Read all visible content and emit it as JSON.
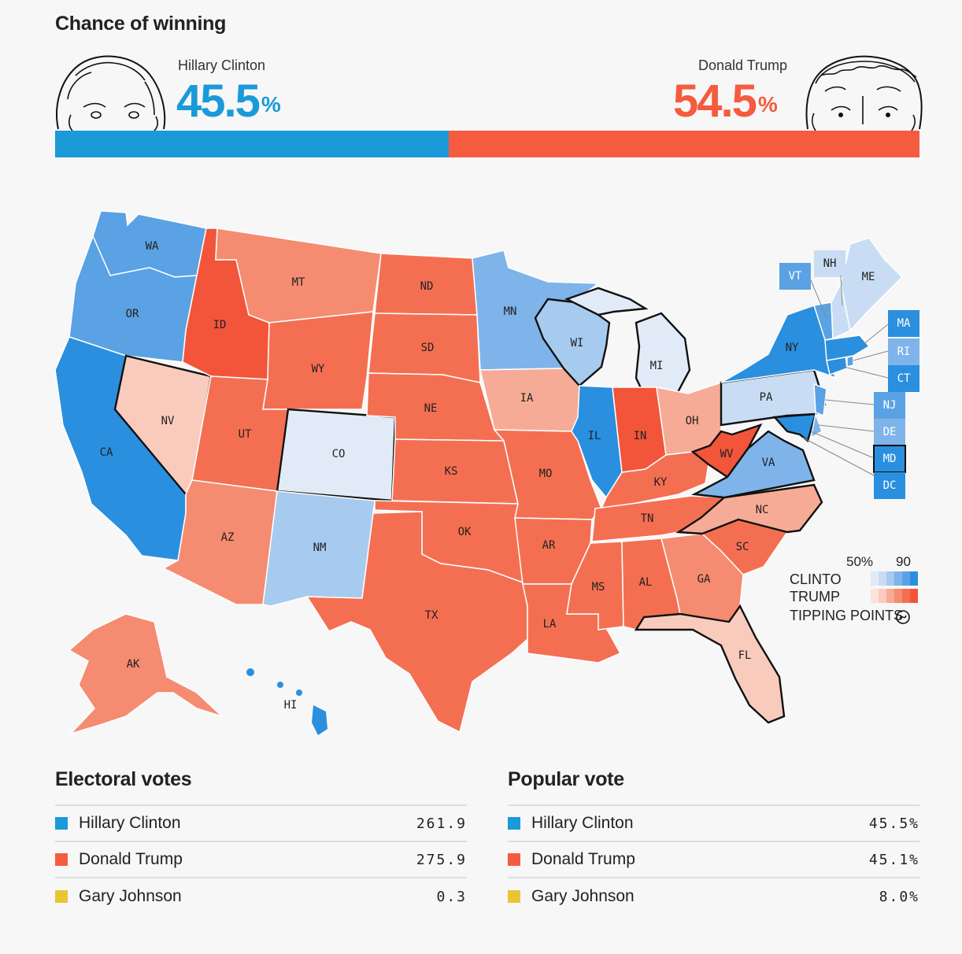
{
  "header": {
    "title": "Chance of winning"
  },
  "candidates": {
    "clinton": {
      "name": "Hillary Clinton",
      "pct": "45.5",
      "pct_sign": "%",
      "color": "#1a9ad9",
      "portrait": "clinton-portrait-icon"
    },
    "trump": {
      "name": "Donald Trump",
      "pct": "54.5",
      "pct_sign": "%",
      "color": "#f55b3e",
      "portrait": "trump-portrait-icon"
    }
  },
  "probability_bar": {
    "clinton_share": 0.455,
    "trump_share": 0.545
  },
  "map": {
    "state_labels": [
      "WA",
      "OR",
      "CA",
      "NV",
      "ID",
      "MT",
      "WY",
      "UT",
      "CO",
      "AZ",
      "NM",
      "AK",
      "HI",
      "ND",
      "SD",
      "NE",
      "KS",
      "OK",
      "TX",
      "MN",
      "IA",
      "MO",
      "AR",
      "LA",
      "WI",
      "IL",
      "MI",
      "IN",
      "OH",
      "KY",
      "TN",
      "MS",
      "AL",
      "GA",
      "FL",
      "SC",
      "NC",
      "WV",
      "VA",
      "PA",
      "NY",
      "VT",
      "NH",
      "ME",
      "MA",
      "RI",
      "CT",
      "NJ",
      "DE",
      "MD",
      "DC"
    ],
    "tipping_points": [
      "NV",
      "CO",
      "WI",
      "MI",
      "NC",
      "FL",
      "PA",
      "MD",
      "WV",
      "VA"
    ]
  },
  "legend": {
    "scale_low": "50%",
    "scale_high": "90",
    "clinton_label": "CLINTO",
    "trump_label": "TRUMP",
    "tipping_label": "TIPPING POINTS",
    "clinton_scale": [
      "#e1ebf7",
      "#c8ddf3",
      "#a7caef",
      "#7fb4ea",
      "#5aa2e3",
      "#2a8fde"
    ],
    "trump_scale": [
      "#fbe3dc",
      "#f9cbbd",
      "#f6ab96",
      "#f58b70",
      "#f46f52",
      "#f2553a"
    ]
  },
  "electoral_votes": {
    "title": "Electoral votes",
    "rows": [
      {
        "name": "Hillary Clinton",
        "value": "261.9",
        "color": "#1a9ad9"
      },
      {
        "name": "Donald Trump",
        "value": "275.9",
        "color": "#f55b3e"
      },
      {
        "name": "Gary Johnson",
        "value": "0.3",
        "color": "#e8c534"
      }
    ]
  },
  "popular_vote": {
    "title": "Popular vote",
    "rows": [
      {
        "name": "Hillary Clinton",
        "value": "45.5%",
        "color": "#1a9ad9"
      },
      {
        "name": "Donald Trump",
        "value": "45.1%",
        "color": "#f55b3e"
      },
      {
        "name": "Gary Johnson",
        "value": "8.0%",
        "color": "#e8c534"
      }
    ]
  }
}
